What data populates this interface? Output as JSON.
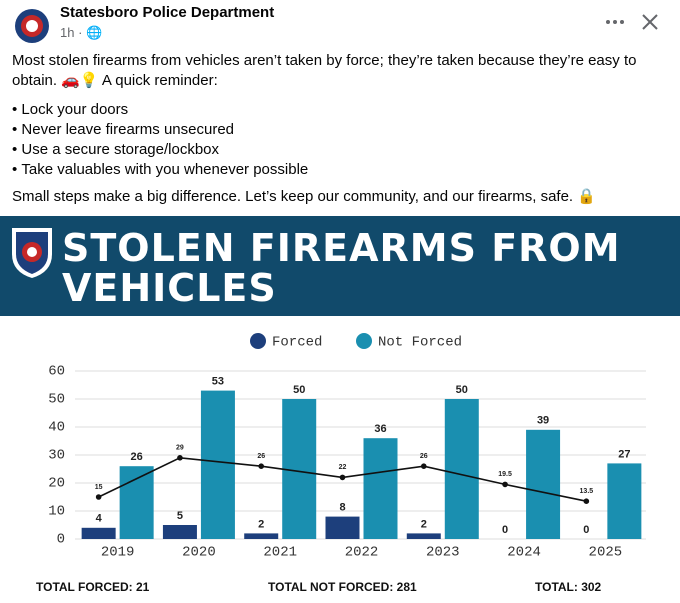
{
  "post": {
    "author": "Statesboro Police Department",
    "time": "1h",
    "text": "Most stolen firearms from vehicles aren’t taken by force; they’re taken because they’re easy to obtain. 🚗💡 A quick reminder:",
    "bullets": [
      "Lock your doors",
      "Never leave firearms unsecured",
      "Use a secure storage/lockbox",
      "Take valuables with you whenever possible"
    ],
    "closing": "Small steps make a big difference. Let’s keep our community, and our firearms, safe. 🔒"
  },
  "banner": {
    "title_lines": [
      "STOLEN FIREARMS FROM",
      "VEHICLES"
    ]
  },
  "chart_data": {
    "type": "bar",
    "categories": [
      "2019",
      "2020",
      "2021",
      "2022",
      "2023",
      "2024",
      "2025"
    ],
    "series": [
      {
        "name": "Forced",
        "color": "#1d3f7c",
        "values": [
          4,
          5,
          2,
          8,
          2,
          0,
          0
        ]
      },
      {
        "name": "Not Forced",
        "color": "#1a8fb0",
        "values": [
          26,
          53,
          50,
          36,
          50,
          39,
          27
        ]
      },
      {
        "type": "line",
        "color": "#111111",
        "values": [
          15,
          29,
          26,
          22,
          26,
          19.5,
          13.5
        ]
      }
    ],
    "ylim": [
      0,
      60
    ],
    "yticks": [
      0,
      10,
      20,
      30,
      40,
      50,
      60
    ],
    "grid": true,
    "legend": "top"
  },
  "footer": [
    "TOTAL FORCED: 21",
    "TOTAL NOT FORCED: 281",
    "TOTAL: 302"
  ]
}
